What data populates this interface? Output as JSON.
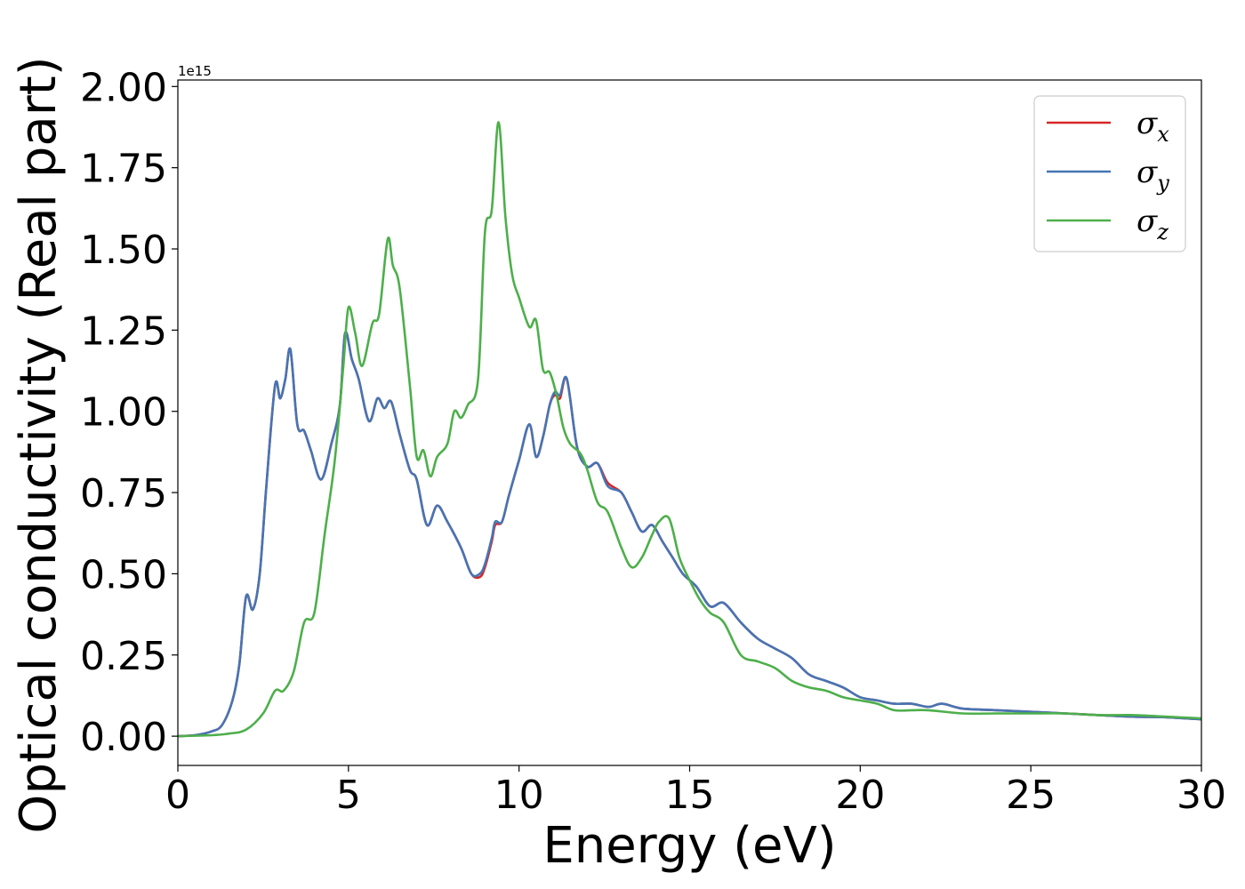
{
  "chart_data": {
    "type": "line",
    "title": "",
    "xlabel": "Energy (eV)",
    "ylabel": "Optical conductivity (Real part)",
    "y_offset_label": "1e15",
    "xlim": [
      0,
      30
    ],
    "ylim": [
      -0.09,
      2.02
    ],
    "x_ticks": [
      0,
      5,
      10,
      15,
      20,
      25,
      30
    ],
    "x_tick_labels": [
      "0",
      "5",
      "10",
      "15",
      "20",
      "25",
      "30"
    ],
    "y_ticks": [
      0,
      0.25,
      0.5,
      0.75,
      1.0,
      1.25,
      1.5,
      1.75,
      2.0
    ],
    "y_tick_labels": [
      "0.00",
      "0.25",
      "0.50",
      "0.75",
      "1.00",
      "1.25",
      "1.50",
      "1.75",
      "2.00"
    ],
    "grid": false,
    "legend_position": "top-right",
    "series": [
      {
        "name": "σx",
        "legend_base": "σ",
        "legend_sub": "x",
        "color": "#d62728",
        "x": [
          0,
          0.5,
          1.0,
          1.3,
          1.6,
          1.8,
          2.0,
          2.2,
          2.4,
          2.6,
          2.85,
          3.0,
          3.15,
          3.3,
          3.5,
          3.7,
          3.9,
          4.2,
          4.5,
          4.75,
          4.9,
          5.1,
          5.3,
          5.6,
          5.85,
          6.05,
          6.25,
          6.5,
          6.8,
          7.0,
          7.3,
          7.6,
          7.9,
          8.3,
          8.6,
          8.85,
          9.0,
          9.2,
          9.3,
          9.5,
          9.7,
          10.0,
          10.3,
          10.5,
          10.7,
          10.9,
          11.05,
          11.2,
          11.4,
          11.7,
          12.0,
          12.3,
          12.6,
          13.0,
          13.3,
          13.6,
          13.9,
          14.2,
          14.5,
          14.8,
          15.2,
          15.6,
          16.0,
          16.5,
          17.0,
          17.5,
          18.0,
          18.5,
          19.0,
          19.5,
          20.0,
          20.5,
          21.0,
          21.5,
          22.0,
          22.4,
          23.0,
          24.0,
          25.0,
          26.0,
          27.0,
          28.0,
          29.0,
          30.0
        ],
        "y": [
          0.0,
          0.003,
          0.015,
          0.035,
          0.11,
          0.22,
          0.43,
          0.39,
          0.5,
          0.78,
          1.08,
          1.04,
          1.1,
          1.19,
          0.96,
          0.94,
          0.88,
          0.79,
          0.9,
          1.02,
          1.24,
          1.16,
          1.1,
          0.97,
          1.04,
          1.01,
          1.03,
          0.93,
          0.82,
          0.79,
          0.65,
          0.71,
          0.66,
          0.58,
          0.5,
          0.49,
          0.52,
          0.6,
          0.65,
          0.66,
          0.74,
          0.85,
          0.96,
          0.86,
          0.92,
          1.02,
          1.05,
          1.04,
          1.1,
          0.89,
          0.83,
          0.84,
          0.78,
          0.75,
          0.69,
          0.63,
          0.65,
          0.6,
          0.55,
          0.5,
          0.46,
          0.4,
          0.41,
          0.35,
          0.3,
          0.27,
          0.24,
          0.19,
          0.17,
          0.15,
          0.12,
          0.11,
          0.1,
          0.1,
          0.09,
          0.1,
          0.085,
          0.08,
          0.075,
          0.07,
          0.065,
          0.06,
          0.058,
          0.052
        ]
      },
      {
        "name": "σy",
        "legend_base": "σ",
        "legend_sub": "y",
        "color": "#4575b4",
        "x": [
          0,
          0.5,
          1.0,
          1.3,
          1.6,
          1.8,
          2.0,
          2.2,
          2.4,
          2.6,
          2.85,
          3.0,
          3.15,
          3.3,
          3.5,
          3.7,
          3.9,
          4.2,
          4.5,
          4.75,
          4.9,
          5.1,
          5.3,
          5.6,
          5.85,
          6.05,
          6.25,
          6.5,
          6.8,
          7.0,
          7.3,
          7.6,
          7.9,
          8.3,
          8.6,
          8.85,
          9.0,
          9.2,
          9.3,
          9.5,
          9.7,
          10.0,
          10.3,
          10.5,
          10.7,
          10.9,
          11.05,
          11.2,
          11.4,
          11.7,
          12.0,
          12.3,
          12.6,
          13.0,
          13.3,
          13.6,
          13.9,
          14.2,
          14.5,
          14.8,
          15.2,
          15.6,
          16.0,
          16.5,
          17.0,
          17.5,
          18.0,
          18.5,
          19.0,
          19.5,
          20.0,
          20.5,
          21.0,
          21.5,
          22.0,
          22.4,
          23.0,
          24.0,
          25.0,
          26.0,
          27.0,
          28.0,
          29.0,
          30.0
        ],
        "y": [
          0.0,
          0.003,
          0.015,
          0.035,
          0.11,
          0.22,
          0.43,
          0.39,
          0.5,
          0.78,
          1.08,
          1.04,
          1.1,
          1.19,
          0.96,
          0.94,
          0.88,
          0.79,
          0.9,
          1.02,
          1.24,
          1.16,
          1.1,
          0.97,
          1.04,
          1.01,
          1.03,
          0.93,
          0.82,
          0.79,
          0.65,
          0.71,
          0.66,
          0.58,
          0.5,
          0.5,
          0.53,
          0.61,
          0.66,
          0.66,
          0.74,
          0.85,
          0.96,
          0.86,
          0.92,
          1.02,
          1.06,
          1.05,
          1.1,
          0.89,
          0.83,
          0.84,
          0.77,
          0.75,
          0.69,
          0.63,
          0.65,
          0.6,
          0.55,
          0.5,
          0.46,
          0.4,
          0.41,
          0.35,
          0.3,
          0.27,
          0.24,
          0.19,
          0.17,
          0.15,
          0.12,
          0.11,
          0.1,
          0.1,
          0.09,
          0.1,
          0.085,
          0.08,
          0.075,
          0.07,
          0.065,
          0.06,
          0.058,
          0.052
        ]
      },
      {
        "name": "σz",
        "legend_base": "σ",
        "legend_sub": "z",
        "color": "#4daf4a",
        "x": [
          0,
          1.0,
          1.5,
          2.0,
          2.5,
          2.85,
          3.1,
          3.4,
          3.7,
          4.0,
          4.3,
          4.6,
          4.85,
          5.0,
          5.2,
          5.4,
          5.7,
          5.9,
          6.15,
          6.3,
          6.5,
          6.8,
          7.0,
          7.2,
          7.4,
          7.6,
          7.9,
          8.1,
          8.3,
          8.5,
          8.8,
          9.0,
          9.2,
          9.4,
          9.6,
          9.8,
          10.0,
          10.3,
          10.5,
          10.7,
          10.9,
          11.1,
          11.3,
          11.5,
          11.8,
          12.0,
          12.3,
          12.6,
          13.0,
          13.3,
          13.6,
          13.9,
          14.1,
          14.4,
          14.7,
          15.0,
          15.3,
          15.6,
          16.0,
          16.5,
          17.0,
          17.5,
          18.0,
          18.5,
          19.0,
          19.5,
          20.0,
          20.5,
          21.0,
          21.5,
          22.0,
          23.0,
          24.0,
          25.0,
          26.0,
          27.0,
          28.0,
          29.0,
          30.0
        ],
        "y": [
          0.0,
          0.003,
          0.008,
          0.02,
          0.07,
          0.14,
          0.14,
          0.2,
          0.35,
          0.38,
          0.62,
          0.85,
          1.14,
          1.32,
          1.24,
          1.14,
          1.27,
          1.3,
          1.53,
          1.45,
          1.38,
          1.08,
          0.86,
          0.88,
          0.8,
          0.86,
          0.9,
          1.0,
          0.98,
          1.02,
          1.1,
          1.55,
          1.62,
          1.89,
          1.6,
          1.42,
          1.35,
          1.26,
          1.28,
          1.13,
          1.12,
          1.05,
          0.95,
          0.9,
          0.87,
          0.82,
          0.72,
          0.69,
          0.58,
          0.52,
          0.55,
          0.62,
          0.66,
          0.67,
          0.55,
          0.48,
          0.42,
          0.38,
          0.35,
          0.25,
          0.23,
          0.21,
          0.17,
          0.15,
          0.14,
          0.12,
          0.11,
          0.1,
          0.08,
          0.08,
          0.08,
          0.07,
          0.07,
          0.07,
          0.07,
          0.065,
          0.065,
          0.06,
          0.055
        ]
      }
    ]
  }
}
